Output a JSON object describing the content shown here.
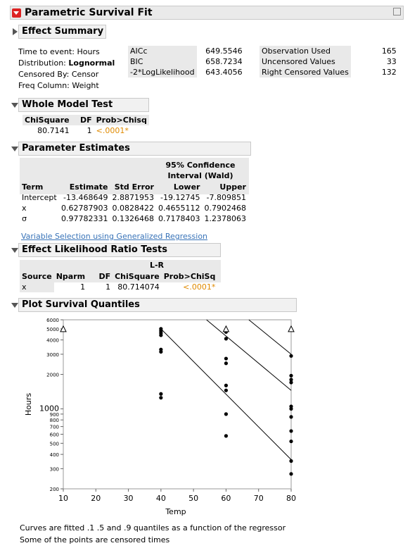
{
  "report": {
    "title": "Parametric Survival Fit"
  },
  "effect_summary": {
    "title": "Effect Summary",
    "info": [
      "Time to event: Hours",
      "Distribution: ",
      "Lognormal",
      "Censored By: Censor",
      "Freq Column: Weight"
    ],
    "fit_labels": [
      "AICc",
      "BIC",
      "-2*LogLikelihood"
    ],
    "fit_values": [
      "649.5546",
      "658.7234",
      "643.4056"
    ],
    "obs_labels": [
      "Observation Used",
      "Uncensored Values",
      "Right Censored Values"
    ],
    "obs_values": [
      "165",
      "33",
      "132"
    ]
  },
  "whole_model": {
    "title": "Whole Model Test",
    "headers": [
      "ChiSquare",
      "DF",
      "Prob>Chisq"
    ],
    "row": [
      "80.7141",
      "1",
      "<.0001*"
    ]
  },
  "param_est": {
    "title": "Parameter Estimates",
    "ci_header_1": "95% Confidence",
    "ci_header_2": "Interval (Wald)",
    "headers": [
      "Term",
      "Estimate",
      "Std Error",
      "Lower",
      "Upper"
    ],
    "rows": [
      [
        "Intercept",
        "-13.468649",
        "2.8871953",
        "-19.12745",
        "-7.809851"
      ],
      [
        "x",
        "0.62787903",
        "0.0828422",
        "0.4655112",
        "0.7902468"
      ],
      [
        "σ",
        "0.97782331",
        "0.1326468",
        "0.7178403",
        "1.2378063"
      ]
    ],
    "link": "Variable Selection using Generalized Regression"
  },
  "lr_tests": {
    "title": "Effect Likelihood Ratio Tests",
    "lr_top": "L-R",
    "headers": [
      "Source",
      "Nparm",
      "DF",
      "ChiSquare",
      "Prob>ChiSq"
    ],
    "row": [
      "x",
      "1",
      "1",
      "80.714074",
      "<.0001*"
    ]
  },
  "plot": {
    "title": "Plot Survival Quantiles",
    "caption_1": "Curves are fitted .1 .5 and .9 quantiles as a function of the regressor",
    "caption_2": "Some of the points are censored times"
  },
  "chart_data": {
    "type": "scatter",
    "title": "",
    "xlabel": "Temp",
    "ylabel": "Hours",
    "xlim": [
      10,
      80
    ],
    "ylim": [
      200,
      6000
    ],
    "y_scale": "log",
    "x_ticks": [
      "10",
      "20",
      "30",
      "40",
      "50",
      "60",
      "70",
      "80"
    ],
    "y_ticks": [
      "200",
      "300",
      "400",
      "500",
      "600",
      "700",
      "800",
      "900",
      "1000",
      "2000",
      "3000",
      "4000",
      "5000",
      "6000"
    ],
    "points": [
      [
        40,
        1250
      ],
      [
        40,
        1350
      ],
      [
        40,
        3150
      ],
      [
        40,
        3300
      ],
      [
        40,
        4400
      ],
      [
        40,
        4600
      ],
      [
        40,
        4800
      ],
      [
        40,
        5000
      ],
      [
        60,
        580
      ],
      [
        60,
        900
      ],
      [
        60,
        1450
      ],
      [
        60,
        1600
      ],
      [
        60,
        2500
      ],
      [
        60,
        2750
      ],
      [
        60,
        4100
      ],
      [
        60,
        4700
      ],
      [
        80,
        270
      ],
      [
        80,
        350
      ],
      [
        80,
        520
      ],
      [
        80,
        640
      ],
      [
        80,
        850
      ],
      [
        80,
        1000
      ],
      [
        80,
        1050
      ],
      [
        80,
        1700
      ],
      [
        80,
        1800
      ],
      [
        80,
        1950
      ],
      [
        80,
        2900
      ]
    ],
    "censored_markers": [
      [
        10,
        5000
      ],
      [
        60,
        5000
      ],
      [
        80,
        5000
      ]
    ],
    "series": [
      {
        "line": [
          [
            40,
            5000
          ],
          [
            80,
            360
          ]
        ]
      },
      {
        "line": [
          [
            54,
            6000
          ],
          [
            80,
            1450
          ]
        ]
      },
      {
        "line": [
          [
            67,
            6000
          ],
          [
            80,
            3000
          ]
        ]
      }
    ],
    "grid": false
  }
}
